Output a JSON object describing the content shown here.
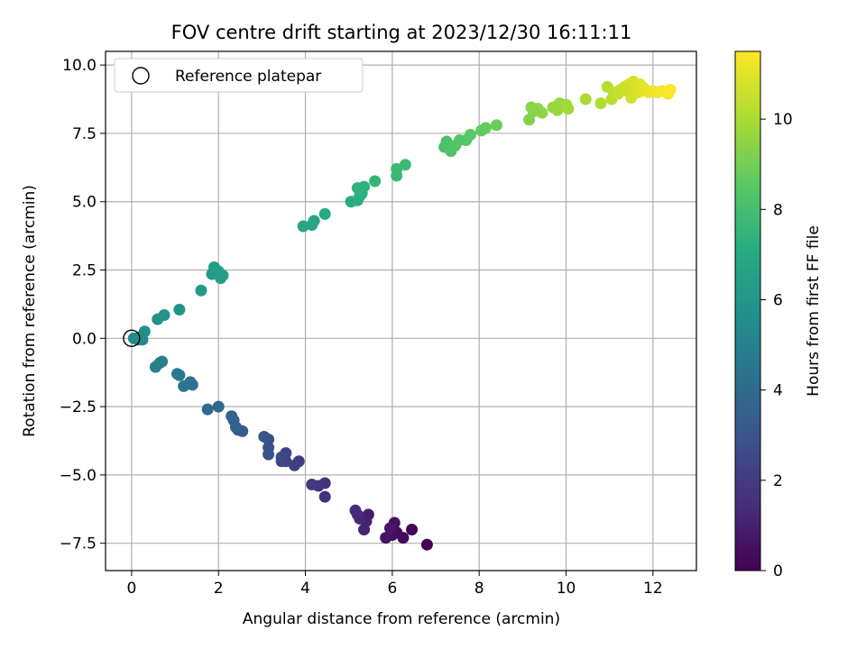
{
  "chart_data": {
    "type": "scatter",
    "title": "FOV centre drift starting at 2023/12/30 16:11:11",
    "xlabel": "Angular distance from reference (arcmin)",
    "ylabel": "Rotation from reference (arcmin)",
    "xlim": [
      -0.6,
      13.0
    ],
    "ylim": [
      -8.5,
      10.5
    ],
    "xticks": [
      0,
      2,
      4,
      6,
      8,
      10,
      12
    ],
    "yticks": [
      -7.5,
      -5.0,
      -2.5,
      0.0,
      2.5,
      5.0,
      7.5,
      10.0
    ],
    "xtick_labels": [
      "0",
      "2",
      "4",
      "6",
      "8",
      "10",
      "12"
    ],
    "ytick_labels": [
      "−7.5",
      "−5.0",
      "−2.5",
      "0.0",
      "2.5",
      "5.0",
      "7.5",
      "10.0"
    ],
    "grid": true,
    "legend": {
      "placement": "top-left",
      "entries": [
        "Reference platepar"
      ]
    },
    "reference_point": {
      "x": 0.0,
      "y": 0.0,
      "marker": "open-circle"
    },
    "colorbar": {
      "label": "Hours from first FF file",
      "colormap": "viridis",
      "range": [
        0,
        11.5
      ],
      "ticks": [
        0,
        2,
        4,
        6,
        8,
        10
      ],
      "tick_labels": [
        "0",
        "2",
        "4",
        "6",
        "8",
        "10"
      ]
    },
    "series": [
      {
        "points": [
          [
            6.8,
            -7.55,
            0.0
          ],
          [
            6.45,
            -7.0,
            0.15
          ],
          [
            6.25,
            -7.3,
            0.25
          ],
          [
            6.1,
            -7.1,
            0.35
          ],
          [
            6.0,
            -7.2,
            0.45
          ],
          [
            6.05,
            -6.75,
            0.55
          ],
          [
            5.85,
            -7.3,
            0.65
          ],
          [
            5.95,
            -6.95,
            0.75
          ],
          [
            5.45,
            -6.45,
            0.9
          ],
          [
            5.4,
            -6.7,
            1.0
          ],
          [
            5.35,
            -7.0,
            1.1
          ],
          [
            5.25,
            -6.6,
            1.2
          ],
          [
            5.2,
            -6.45,
            1.3
          ],
          [
            5.15,
            -6.3,
            1.4
          ],
          [
            4.45,
            -5.8,
            1.6
          ],
          [
            4.45,
            -5.3,
            1.7
          ],
          [
            4.3,
            -5.4,
            1.8
          ],
          [
            4.15,
            -5.35,
            1.9
          ],
          [
            3.85,
            -4.5,
            2.05
          ],
          [
            3.75,
            -4.65,
            2.15
          ],
          [
            3.55,
            -4.5,
            2.25
          ],
          [
            3.55,
            -4.2,
            2.35
          ],
          [
            3.45,
            -4.5,
            2.45
          ],
          [
            3.45,
            -4.35,
            2.55
          ],
          [
            3.15,
            -3.7,
            2.75
          ],
          [
            3.15,
            -4.0,
            2.85
          ],
          [
            3.15,
            -4.25,
            2.95
          ],
          [
            3.05,
            -3.6,
            3.05
          ],
          [
            2.55,
            -3.4,
            3.3
          ],
          [
            2.45,
            -3.35,
            3.4
          ],
          [
            2.4,
            -3.25,
            3.5
          ],
          [
            2.35,
            -3.0,
            3.6
          ],
          [
            2.3,
            -2.85,
            3.7
          ],
          [
            2.0,
            -2.5,
            3.9
          ],
          [
            1.75,
            -2.6,
            4.0
          ],
          [
            1.4,
            -1.7,
            4.25
          ],
          [
            1.35,
            -1.6,
            4.35
          ],
          [
            1.2,
            -1.75,
            4.45
          ],
          [
            1.1,
            -1.35,
            4.55
          ],
          [
            1.05,
            -1.3,
            4.65
          ],
          [
            0.7,
            -0.85,
            4.85
          ],
          [
            0.65,
            -0.9,
            4.9
          ],
          [
            0.55,
            -1.05,
            5.0
          ],
          [
            0.25,
            -0.05,
            5.2
          ],
          [
            0.15,
            -0.05,
            5.3
          ],
          [
            0.05,
            0.0,
            5.4
          ],
          [
            0.2,
            0.05,
            5.5
          ],
          [
            0.3,
            0.25,
            5.6
          ],
          [
            0.6,
            0.7,
            5.75
          ],
          [
            0.75,
            0.85,
            5.85
          ],
          [
            1.1,
            1.05,
            5.95
          ],
          [
            1.6,
            1.75,
            6.15
          ],
          [
            1.85,
            2.35,
            6.25
          ],
          [
            1.9,
            2.6,
            6.35
          ],
          [
            2.0,
            2.45,
            6.4
          ],
          [
            2.1,
            2.3,
            6.45
          ],
          [
            2.05,
            2.2,
            6.5
          ],
          [
            3.95,
            4.1,
            6.75
          ],
          [
            4.15,
            4.15,
            6.8
          ],
          [
            4.2,
            4.3,
            6.85
          ],
          [
            4.45,
            4.55,
            6.95
          ],
          [
            5.05,
            5.0,
            7.15
          ],
          [
            5.2,
            5.05,
            7.2
          ],
          [
            5.25,
            5.2,
            7.25
          ],
          [
            5.3,
            5.3,
            7.3
          ],
          [
            5.2,
            5.5,
            7.35
          ],
          [
            5.35,
            5.55,
            7.4
          ],
          [
            5.6,
            5.75,
            7.5
          ],
          [
            6.1,
            5.95,
            7.7
          ],
          [
            6.1,
            6.2,
            7.75
          ],
          [
            6.3,
            6.35,
            7.8
          ],
          [
            7.2,
            7.0,
            8.1
          ],
          [
            7.25,
            7.2,
            8.15
          ],
          [
            7.3,
            7.05,
            8.2
          ],
          [
            7.35,
            6.85,
            8.25
          ],
          [
            7.45,
            7.05,
            8.3
          ],
          [
            7.55,
            7.25,
            8.4
          ],
          [
            7.7,
            7.25,
            8.45
          ],
          [
            7.8,
            7.45,
            8.5
          ],
          [
            8.05,
            7.6,
            8.7
          ],
          [
            8.15,
            7.7,
            8.75
          ],
          [
            8.4,
            7.8,
            8.85
          ],
          [
            9.15,
            8.0,
            9.3
          ],
          [
            9.25,
            8.3,
            9.35
          ],
          [
            9.2,
            8.45,
            9.4
          ],
          [
            9.35,
            8.4,
            9.45
          ],
          [
            9.45,
            8.25,
            9.5
          ],
          [
            9.7,
            8.45,
            9.6
          ],
          [
            9.8,
            8.35,
            9.65
          ],
          [
            9.85,
            8.6,
            9.7
          ],
          [
            10.0,
            8.55,
            9.8
          ],
          [
            10.05,
            8.4,
            9.85
          ],
          [
            10.45,
            8.75,
            10.0
          ],
          [
            10.8,
            8.6,
            10.1
          ],
          [
            10.95,
            9.2,
            10.2
          ],
          [
            11.05,
            8.75,
            10.3
          ],
          [
            11.1,
            9.0,
            10.35
          ],
          [
            11.2,
            8.95,
            10.45
          ],
          [
            11.25,
            9.1,
            10.5
          ],
          [
            11.35,
            9.2,
            10.55
          ],
          [
            11.4,
            9.05,
            10.6
          ],
          [
            11.45,
            9.3,
            10.7
          ],
          [
            11.5,
            8.8,
            10.75
          ],
          [
            11.55,
            9.4,
            10.8
          ],
          [
            11.6,
            9.2,
            10.85
          ],
          [
            11.65,
            9.0,
            10.9
          ],
          [
            11.7,
            9.3,
            10.95
          ],
          [
            11.75,
            9.05,
            11.0
          ],
          [
            11.8,
            9.15,
            11.05
          ],
          [
            11.9,
            9.0,
            11.15
          ],
          [
            12.0,
            9.05,
            11.2
          ],
          [
            12.1,
            9.0,
            11.3
          ],
          [
            12.2,
            9.05,
            11.35
          ],
          [
            12.35,
            8.95,
            11.4
          ],
          [
            12.4,
            9.1,
            11.5
          ]
        ]
      }
    ]
  }
}
